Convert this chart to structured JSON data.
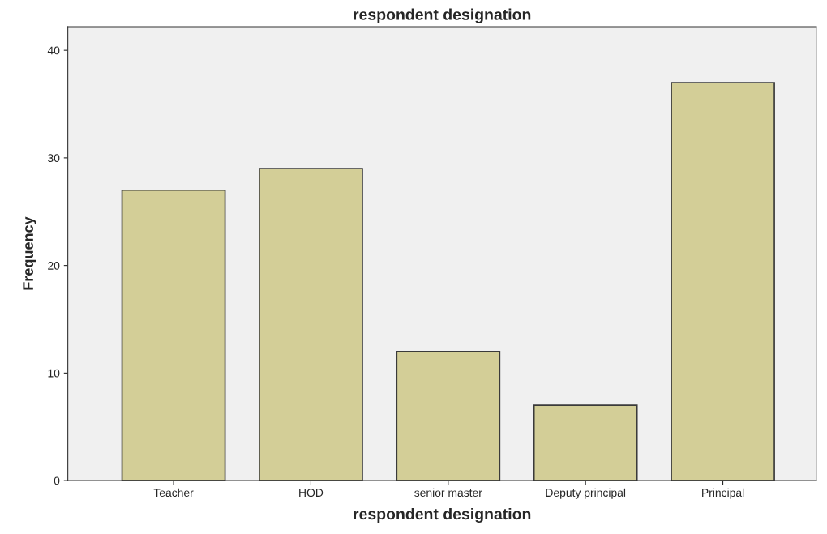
{
  "chart_data": {
    "type": "bar",
    "title": "respondent designation",
    "xlabel": "respondent designation",
    "ylabel": "Frequency",
    "categories": [
      "Teacher",
      "HOD",
      "senior master",
      "Deputy principal",
      "Principal"
    ],
    "values": [
      27,
      29,
      12,
      7,
      37
    ],
    "color": "#d3ce97",
    "ylim": [
      0,
      42.2
    ],
    "yticks": [
      0,
      10,
      20,
      30,
      40
    ],
    "grid": false,
    "legend": false
  }
}
